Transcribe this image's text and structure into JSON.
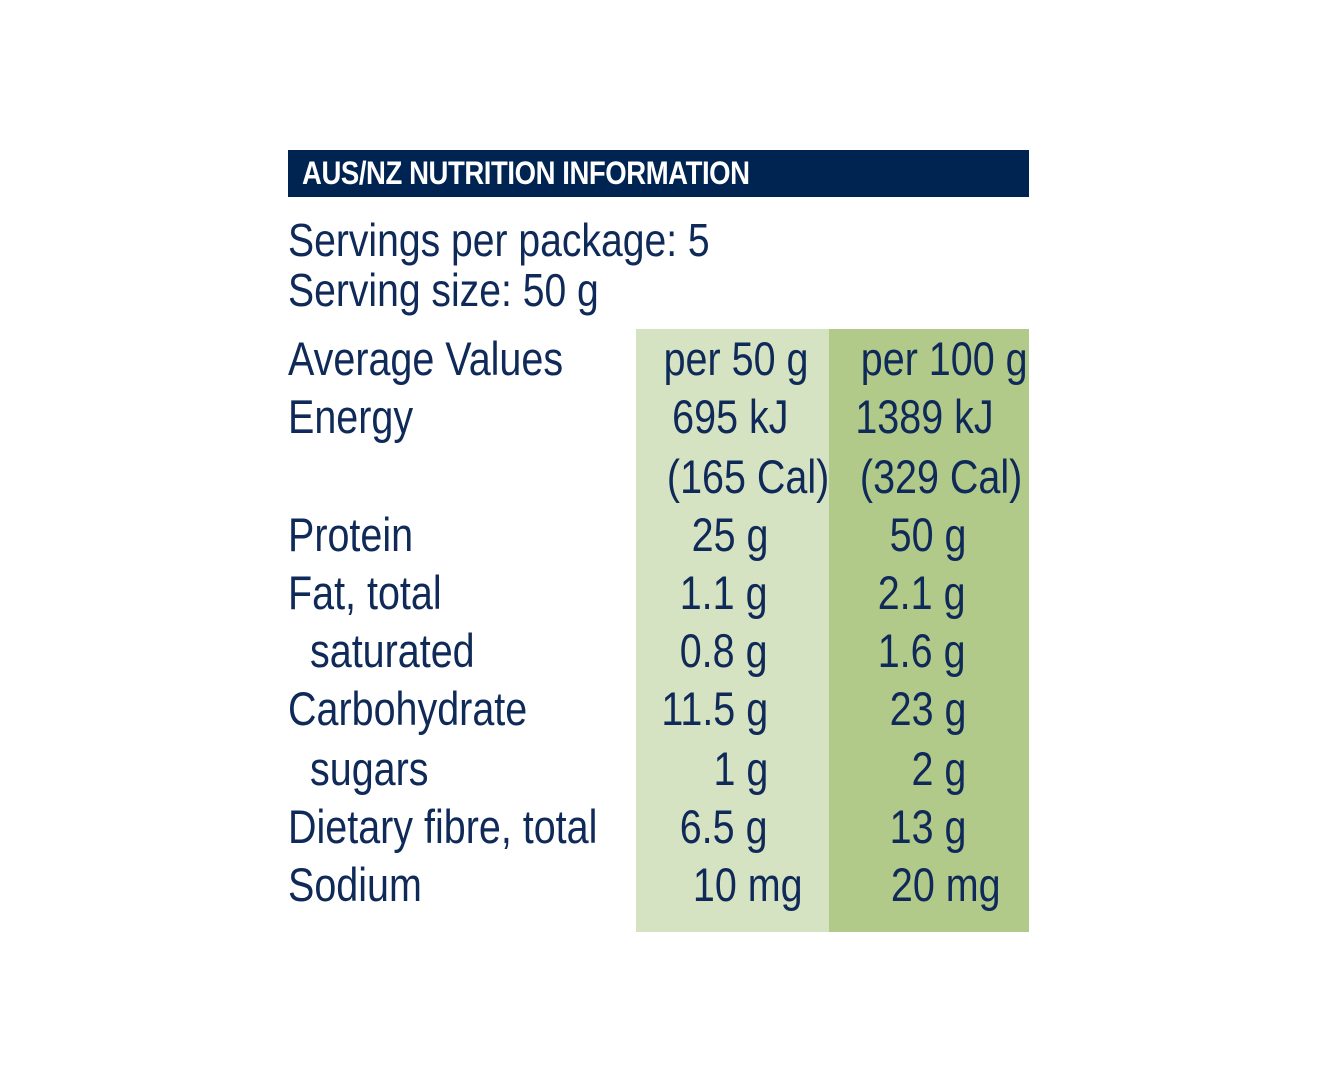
{
  "panel": {
    "title": "AUS/NZ NUTRITION INFORMATION",
    "servings_per_package": "Servings per package: 5",
    "serving_size": "Serving size: 50 g",
    "header": {
      "label": "Average Values",
      "col1": "per 50 g",
      "col2": "per 100 g"
    },
    "rows": [
      {
        "label": "Energy",
        "v1": "695 kJ",
        "v2": "1389 kJ"
      },
      {
        "label": "",
        "v1": "(165 Cal)",
        "v2": "(329 Cal)"
      },
      {
        "label": "Protein",
        "v1": "25 g",
        "v2": "50 g"
      },
      {
        "label": "Fat, total",
        "v1": "1.1 g",
        "v2": "2.1 g"
      },
      {
        "label": "saturated",
        "v1": "0.8 g",
        "v2": "1.6 g"
      },
      {
        "label": "Carbohydrate",
        "v1": "11.5 g",
        "v2": "23 g"
      },
      {
        "label": "sugars",
        "v1": "1 g",
        "v2": "2 g"
      },
      {
        "label": "Dietary fibre, total",
        "v1": "6.5 g",
        "v2": "13 g"
      },
      {
        "label": "Sodium",
        "v1": "10 mg",
        "v2": "20 mg"
      }
    ],
    "colors": {
      "title_bg": "#002452",
      "text": "#0f2a58",
      "col_light": "#d6e3c2",
      "col_dark": "#b1ca8a"
    }
  }
}
